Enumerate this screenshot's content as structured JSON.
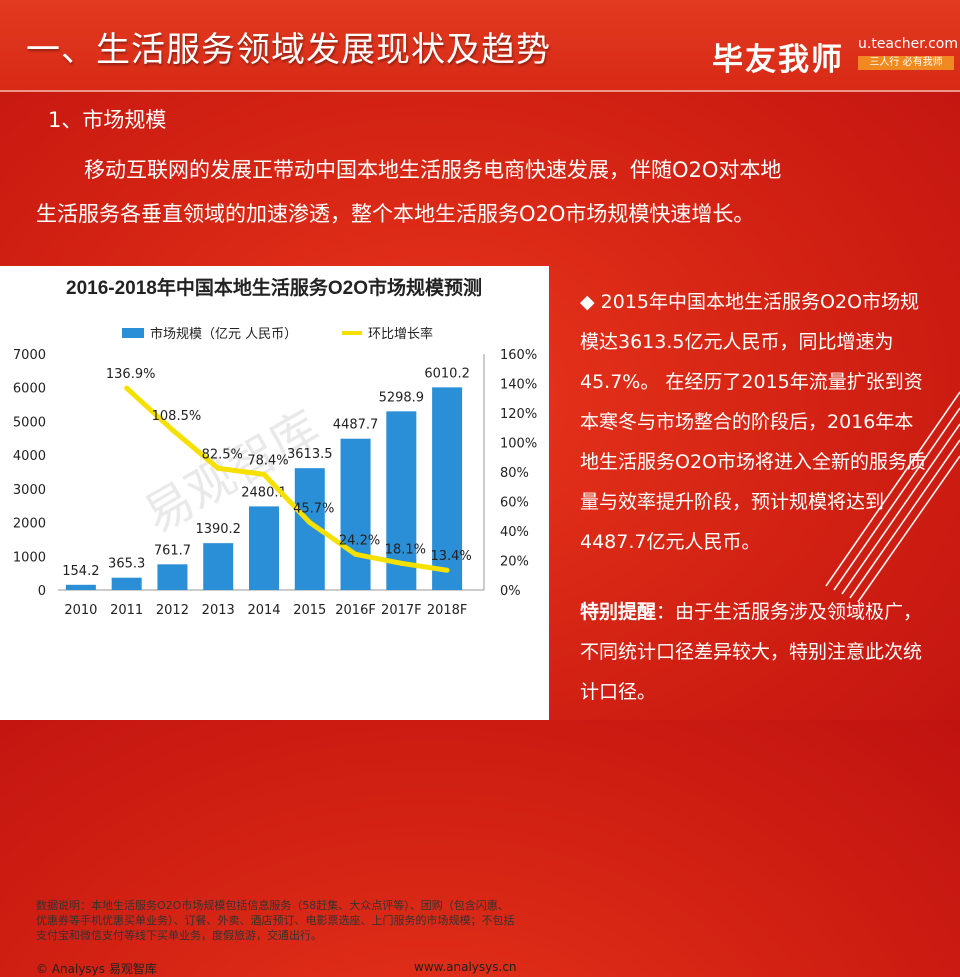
{
  "header": {
    "title": "一、生活服务领域发展现状及趋势",
    "brand": "毕友我师",
    "brand_url": "u.teacher.com",
    "slogan": "三人行 必有我师"
  },
  "section": {
    "heading": "1、市场规模"
  },
  "intro": {
    "line1": "移动互联网的发展正带动中国本地生活服务电商快速发展，伴随O2O对本地",
    "line2": "生活服务各垂直领域的加速渗透，整个本地生活服务O2O市场规模快速增长。"
  },
  "chart_data": {
    "type": "bar",
    "title": "2016-2018年中国本地生活服务O2O市场规模预测",
    "categories": [
      "2010",
      "2011",
      "2012",
      "2013",
      "2014",
      "2015",
      "2016F",
      "2017F",
      "2018F"
    ],
    "series": [
      {
        "name": "市场规模（亿元 人民币）",
        "type": "bar",
        "axis": "left",
        "color": "#2a8fd6",
        "values": [
          154.2,
          365.3,
          761.7,
          1390.2,
          2480.1,
          3613.5,
          4487.7,
          5298.9,
          6010.2
        ]
      },
      {
        "name": "环比增长率",
        "type": "line",
        "axis": "right",
        "color": "#f5e000",
        "values": [
          null,
          136.9,
          108.5,
          82.5,
          78.4,
          45.7,
          24.2,
          18.1,
          13.4
        ]
      }
    ],
    "bar_labels": [
      "154.2",
      "365.3",
      "761.7",
      "1390.2",
      "2480.1",
      "3613.5",
      "4487.7",
      "5298.9",
      "6010.2"
    ],
    "line_labels": [
      "136.9%",
      "108.5%",
      "82.5%",
      "78.4%",
      "45.7%",
      "24.2%",
      "18.1%",
      "13.4%"
    ],
    "y_left": {
      "ylim": [
        0,
        7000
      ],
      "ticks": [
        "0",
        "1000",
        "2000",
        "3000",
        "4000",
        "5000",
        "6000",
        "7000"
      ]
    },
    "y_right": {
      "ylim": [
        0,
        160
      ],
      "ticks": [
        "0%",
        "20%",
        "40%",
        "60%",
        "80%",
        "100%",
        "120%",
        "140%",
        "160%"
      ]
    },
    "legend_position": "top",
    "watermark": "易观智库",
    "note": "数据说明：本地生活服务O2O市场规模包括信息服务（58赶集、大众点评等）、团购（包含闪惠、优惠券等手机优惠买单业务）、订餐、外卖、酒店预订、电影票选座、上门服务的市场规模；不包括支付宝和微信支付等线下买单业务，度假旅游，交通出行。",
    "copyright": "© Analysys 易观智库",
    "website": "www.analysys.cn"
  },
  "side": {
    "bullet": "◆",
    "paragraph": "2015年中国本地生活服务O2O市场规模达3613.5亿元人民币，同比增速为45.7%。 在经历了2015年流量扩张到资本寒冬与市场整合的阶段后，2016年本地生活服务O2O市场将进入全新的服务质量与效率提升阶段，预计规模将达到4487.7亿元人民币。",
    "reminder_label": "特别提醒",
    "reminder_sep": "：",
    "reminder_text": "由于生活服务涉及领域极广，不同统计口径差异较大，特别注意此次统计口径。"
  }
}
